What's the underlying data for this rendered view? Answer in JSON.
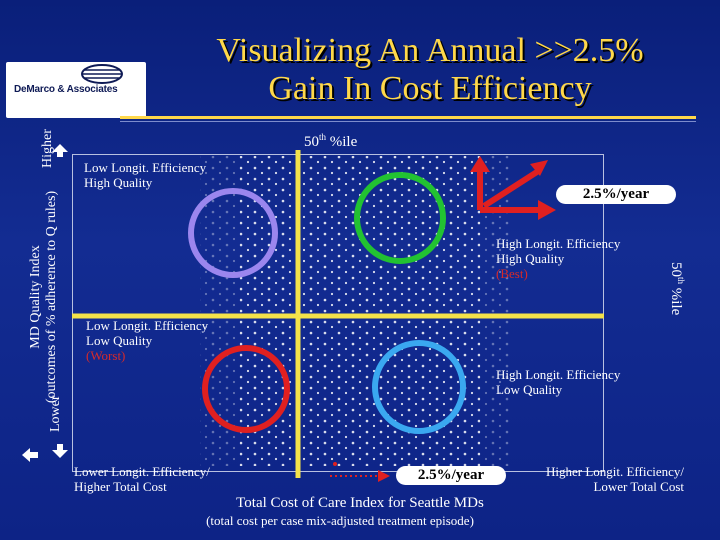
{
  "title": {
    "line1": "Visualizing An Annual >>2.5%",
    "line2": "Gain In Cost Efficiency"
  },
  "logo": {
    "name": "DeMarco & Associates"
  },
  "y_axis": {
    "title_line1": "MD Quality Index",
    "title_line2": "(outcomes of % adherence to Q rules)",
    "higher": "Higher",
    "lower": "Lower"
  },
  "median_top": {
    "num": "50",
    "sup": "th",
    "text": " %ile"
  },
  "median_right": {
    "num": "50",
    "sup": "th",
    "text": " %ile"
  },
  "quadrants": {
    "top_left": {
      "line1": "Low Longit. Efficiency",
      "line2": "High Quality"
    },
    "top_right": {
      "line1": "High Longit. Efficiency",
      "line2": "High Quality",
      "line3": "(Best)"
    },
    "bottom_left": {
      "line1": "Low Longit. Efficiency",
      "line2": "Low Quality",
      "line3": "(Worst)"
    },
    "bottom_right": {
      "line1": "High Longit. Efficiency",
      "line2": "Low Quality"
    }
  },
  "x_axis": {
    "left_line1": "Lower Longit. Efficiency/",
    "left_line2": "Higher Total Cost",
    "right_line1": "Higher Longit. Efficiency/",
    "right_line2": "Lower Total Cost",
    "title": "Total Cost of Care Index for Seattle MDs",
    "subtitle": "(total cost per case mix-adjusted treatment episode)"
  },
  "rate_label_top": "2.5%/year",
  "rate_label_bottom": "2.5%/year",
  "colors": {
    "background": "#0d2386",
    "title": "#ffd84a",
    "median_lines": "#f4e24a",
    "circle_top_left": "#9b86ee",
    "circle_top_right": "#22c232",
    "circle_bottom_left": "#e02020",
    "circle_bottom_right": "#3aa8f0",
    "arrows": "#e02020",
    "worst_best_text": "#d62a2a"
  }
}
